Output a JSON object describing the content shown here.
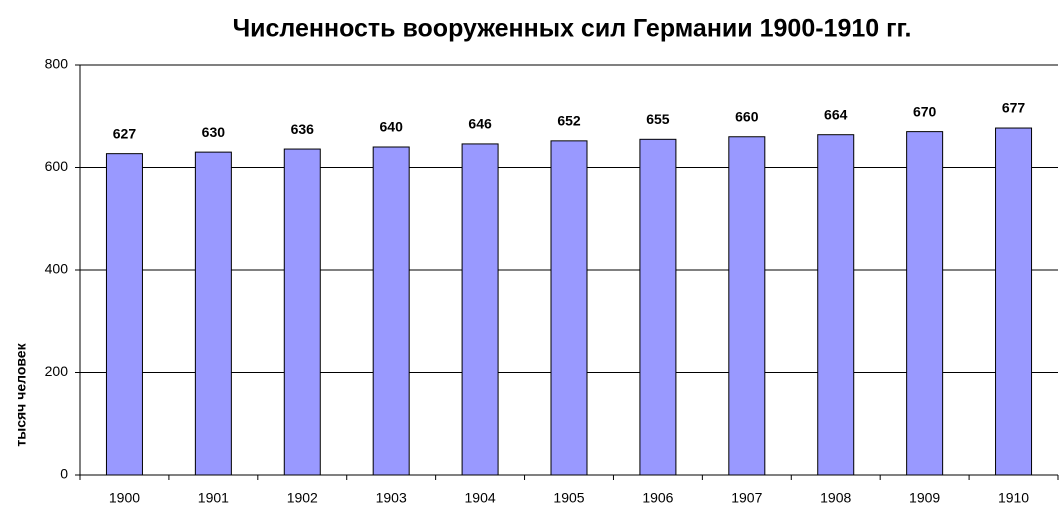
{
  "chart_data": {
    "type": "bar",
    "title": "Численность вооруженных сил Германии 1900-1910 гг.",
    "y_label": "тысяч человек",
    "categories": [
      "1900",
      "1901",
      "1902",
      "1903",
      "1904",
      "1905",
      "1906",
      "1907",
      "1908",
      "1909",
      "1910"
    ],
    "values": [
      627,
      630,
      636,
      640,
      646,
      652,
      655,
      660,
      664,
      670,
      677
    ],
    "color": "#9999ff",
    "ylim": [
      0,
      800
    ],
    "yticks": [
      0,
      200,
      400,
      600,
      800
    ],
    "grid": true
  }
}
